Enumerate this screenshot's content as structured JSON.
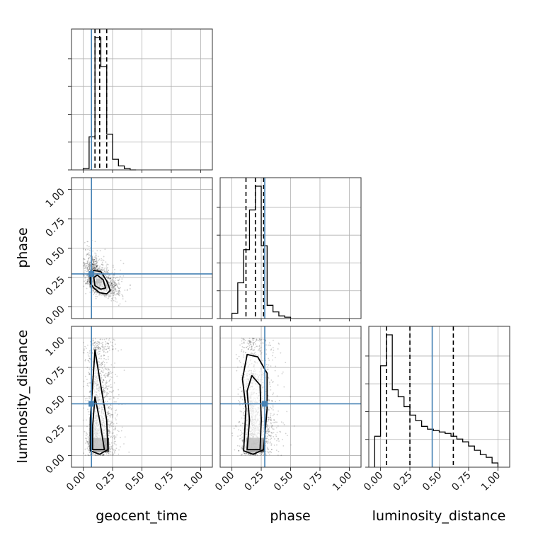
{
  "chart_data": {
    "type": "corner",
    "parameters": [
      "geocent_time",
      "phase",
      "luminosity_distance"
    ],
    "labels": [
      "geocent_time",
      "phase",
      "luminosity_distance"
    ],
    "axis_range": [
      -0.1,
      1.1
    ],
    "ticks": [
      0.0,
      0.25,
      0.5,
      0.75,
      1.0
    ],
    "tick_labels": [
      "0.00",
      "0.25",
      "0.50",
      "0.75",
      "1.00"
    ],
    "grid": true,
    "truths": {
      "geocent_time": 0.07,
      "phase": 0.28,
      "luminosity_distance": 0.44
    },
    "quantiles": {
      "geocent_time": [
        0.1,
        0.14,
        0.2
      ],
      "phase": [
        0.12,
        0.2,
        0.27
      ],
      "luminosity_distance": [
        0.05,
        0.25,
        0.62
      ]
    },
    "histograms": {
      "geocent_time": {
        "bin_edges": [
          0.0,
          0.05,
          0.1,
          0.15,
          0.2,
          0.25,
          0.3,
          0.35,
          0.4,
          0.45
        ],
        "counts": [
          0.01,
          0.25,
          1.0,
          0.78,
          0.27,
          0.08,
          0.03,
          0.01,
          0.0
        ]
      },
      "phase": {
        "bin_edges": [
          0.0,
          0.05,
          0.1,
          0.15,
          0.2,
          0.25,
          0.3,
          0.35,
          0.4,
          0.45,
          0.5
        ],
        "counts": [
          0.04,
          0.27,
          0.52,
          0.82,
          1.0,
          0.55,
          0.1,
          0.05,
          0.02,
          0.01
        ]
      },
      "luminosity_distance": {
        "bin_edges": [
          -0.05,
          0.0,
          0.05,
          0.1,
          0.15,
          0.2,
          0.25,
          0.3,
          0.35,
          0.4,
          0.45,
          0.5,
          0.55,
          0.6,
          0.65,
          0.7,
          0.75,
          0.8,
          0.85,
          0.9,
          0.95,
          1.0
        ],
        "counts": [
          0.22,
          0.72,
          0.94,
          0.55,
          0.5,
          0.43,
          0.37,
          0.33,
          0.29,
          0.27,
          0.26,
          0.25,
          0.24,
          0.22,
          0.2,
          0.18,
          0.15,
          0.12,
          0.09,
          0.07,
          0.03
        ]
      }
    },
    "scatter_clouds": [
      {
        "x_param": "geocent_time",
        "y_param": "phase",
        "x_center": 0.12,
        "x_spread": 0.05,
        "x_skew": 0.1,
        "y_center": 0.22,
        "y_spread": 0.06,
        "y_skew": 0.12,
        "corr": -0.45,
        "count": 1300
      },
      {
        "x_param": "geocent_time",
        "y_param": "luminosity_distance",
        "x_center": 0.13,
        "x_spread": 0.05,
        "x_skew": 0.07,
        "y_center": 0.3,
        "y_spread": 0.3,
        "y_skew": 0.25,
        "corr": 0.0,
        "count": 1500
      },
      {
        "x_param": "phase",
        "y_param": "luminosity_distance",
        "x_center": 0.19,
        "x_spread": 0.06,
        "x_skew": 0.1,
        "y_center": 0.3,
        "y_spread": 0.3,
        "y_skew": 0.25,
        "corr": 0.0,
        "count": 1500
      }
    ],
    "density_contours": [
      {
        "x_param": "geocent_time",
        "y_param": "phase",
        "levels": [
          [
            [
              0.06,
              0.27
            ],
            [
              0.09,
              0.31
            ],
            [
              0.15,
              0.3
            ],
            [
              0.2,
              0.22
            ],
            [
              0.23,
              0.14
            ],
            [
              0.2,
              0.11
            ],
            [
              0.14,
              0.12
            ],
            [
              0.09,
              0.16
            ],
            [
              0.06,
              0.2
            ]
          ],
          [
            [
              0.09,
              0.25
            ],
            [
              0.12,
              0.27
            ],
            [
              0.17,
              0.23
            ],
            [
              0.19,
              0.16
            ],
            [
              0.15,
              0.15
            ],
            [
              0.1,
              0.18
            ]
          ]
        ],
        "core": [
          [
            0.11,
            0.2
          ],
          [
            0.16,
            0.24
          ]
        ]
      },
      {
        "x_param": "geocent_time",
        "y_param": "luminosity_distance",
        "levels": [
          [
            [
              0.06,
              0.04
            ],
            [
              0.06,
              0.3
            ],
            [
              0.08,
              0.6
            ],
            [
              0.1,
              0.9
            ],
            [
              0.14,
              0.65
            ],
            [
              0.2,
              0.3
            ],
            [
              0.21,
              0.05
            ],
            [
              0.14,
              0.01
            ]
          ],
          [
            [
              0.08,
              0.05
            ],
            [
              0.08,
              0.25
            ],
            [
              0.1,
              0.5
            ],
            [
              0.14,
              0.3
            ],
            [
              0.18,
              0.05
            ]
          ]
        ],
        "core": [
          [
            0.08,
            0.03
          ],
          [
            0.22,
            0.15
          ]
        ]
      },
      {
        "x_param": "phase",
        "y_param": "luminosity_distance",
        "levels": [
          [
            [
              0.1,
              0.04
            ],
            [
              0.12,
              0.4
            ],
            [
              0.09,
              0.65
            ],
            [
              0.13,
              0.86
            ],
            [
              0.22,
              0.84
            ],
            [
              0.3,
              0.7
            ],
            [
              0.3,
              0.4
            ],
            [
              0.27,
              0.05
            ],
            [
              0.18,
              0.01
            ]
          ],
          [
            [
              0.13,
              0.05
            ],
            [
              0.15,
              0.3
            ],
            [
              0.13,
              0.55
            ],
            [
              0.17,
              0.68
            ],
            [
              0.24,
              0.6
            ],
            [
              0.25,
              0.3
            ],
            [
              0.24,
              0.05
            ]
          ]
        ],
        "core": [
          [
            0.12,
            0.03
          ],
          [
            0.28,
            0.15
          ]
        ]
      }
    ]
  },
  "colors": {
    "truth": "#4682b4",
    "hist": "#000000",
    "grid": "#b0b0b0",
    "scatter": "#000000"
  }
}
